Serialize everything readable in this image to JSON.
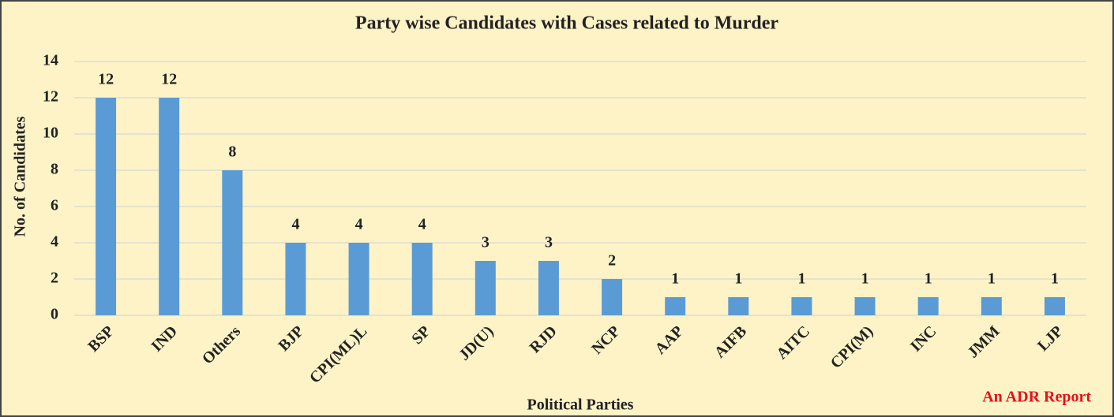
{
  "chart_data": {
    "type": "bar",
    "title": "Party wise Candidates with Cases related to Murder",
    "x_label": "Political Parties",
    "y_label": "No. of Candidates",
    "source": "An ADR Report",
    "categories": [
      "BSP",
      "IND",
      "Others",
      "BJP",
      "CPI(ML)L",
      "SP",
      "JD(U)",
      "RJD",
      "NCP",
      "AAP",
      "AIFB",
      "AITC",
      "CPI(M)",
      "INC",
      "JMM",
      "LJP"
    ],
    "values": [
      12,
      12,
      8,
      4,
      4,
      4,
      3,
      3,
      2,
      1,
      1,
      1,
      1,
      1,
      1,
      1
    ],
    "color": "#5b9bd5",
    "ylim": [
      0,
      14
    ],
    "yticks": [
      0,
      2,
      4,
      6,
      8,
      10,
      12,
      14
    ],
    "grid": true
  }
}
